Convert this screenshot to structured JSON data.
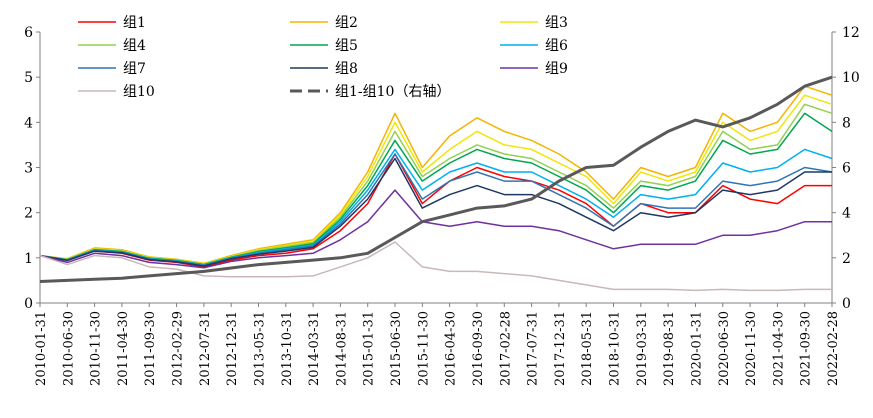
{
  "chart_data": {
    "type": "line",
    "x": [
      "2010-01-31",
      "2010-06-30",
      "2010-11-30",
      "2011-04-30",
      "2011-09-30",
      "2012-02-29",
      "2012-07-31",
      "2012-12-31",
      "2013-05-31",
      "2013-10-31",
      "2014-03-31",
      "2014-08-31",
      "2015-01-31",
      "2015-06-30",
      "2015-11-30",
      "2016-04-30",
      "2016-09-30",
      "2017-02-28",
      "2017-07-31",
      "2017-12-31",
      "2018-05-31",
      "2018-10-31",
      "2019-03-31",
      "2019-08-31",
      "2020-01-31",
      "2020-06-30",
      "2020-11-30",
      "2021-04-30",
      "2021-09-30",
      "2022-02-28"
    ],
    "x_ticks": [
      "2010-01-31",
      "2010-06-30",
      "2010-11-30",
      "2011-04-30",
      "2011-09-30",
      "2012-02-29",
      "2012-07-31",
      "2012-12-31",
      "2013-05-31",
      "2013-10-31",
      "2014-03-31",
      "2014-08-31",
      "2015-01-31",
      "2015-06-30",
      "2015-11-30",
      "2016-04-30",
      "2016-09-30",
      "2017-02-28",
      "2017-07-31",
      "2017-12-31",
      "2018-05-31",
      "2018-10-31",
      "2019-03-31",
      "2019-08-31",
      "2020-01-31",
      "2020-06-30",
      "2020-11-30",
      "2021-04-30",
      "2021-09-30",
      "2022-02-28"
    ],
    "y_left_ticks": [
      "0",
      "1",
      "2",
      "3",
      "4",
      "5",
      "6"
    ],
    "y_right_ticks": [
      "0",
      "2",
      "4",
      "6",
      "8",
      "10",
      "12"
    ],
    "ylim_left": [
      0,
      6
    ],
    "ylim_right": [
      0,
      12
    ],
    "legend_position": "top",
    "series": [
      {
        "name": "组1",
        "color": "#ff0000",
        "axis": "left",
        "values": [
          1.05,
          0.95,
          1.15,
          1.1,
          0.95,
          0.9,
          0.8,
          0.95,
          1.05,
          1.1,
          1.2,
          1.6,
          2.2,
          3.3,
          2.2,
          2.7,
          3.0,
          2.8,
          2.7,
          2.5,
          2.2,
          1.7,
          2.2,
          2.0,
          2.0,
          2.6,
          2.3,
          2.2,
          2.6,
          2.6
        ]
      },
      {
        "name": "组2",
        "color": "#f5b400",
        "axis": "left",
        "values": [
          1.05,
          0.98,
          1.22,
          1.18,
          1.02,
          0.97,
          0.88,
          1.05,
          1.2,
          1.3,
          1.4,
          2.0,
          2.9,
          4.2,
          3.0,
          3.7,
          4.1,
          3.8,
          3.6,
          3.3,
          2.9,
          2.3,
          3.0,
          2.8,
          3.0,
          4.2,
          3.8,
          4.0,
          4.8,
          4.6
        ]
      },
      {
        "name": "组3",
        "color": "#f0e60a",
        "axis": "left",
        "values": [
          1.05,
          0.97,
          1.2,
          1.16,
          1.01,
          0.96,
          0.87,
          1.03,
          1.18,
          1.27,
          1.37,
          1.95,
          2.8,
          4.0,
          2.9,
          3.4,
          3.8,
          3.5,
          3.4,
          3.1,
          2.8,
          2.2,
          2.9,
          2.7,
          2.9,
          4.0,
          3.6,
          3.8,
          4.6,
          4.4
        ]
      },
      {
        "name": "组4",
        "color": "#92d050",
        "axis": "left",
        "values": [
          1.05,
          0.96,
          1.19,
          1.15,
          1.0,
          0.95,
          0.86,
          1.02,
          1.16,
          1.25,
          1.34,
          1.9,
          2.7,
          3.8,
          2.8,
          3.2,
          3.5,
          3.3,
          3.2,
          2.9,
          2.6,
          2.1,
          2.7,
          2.6,
          2.8,
          3.8,
          3.4,
          3.5,
          4.4,
          4.2
        ]
      },
      {
        "name": "组5",
        "color": "#00a651",
        "axis": "left",
        "values": [
          1.05,
          0.96,
          1.18,
          1.14,
          0.99,
          0.94,
          0.85,
          1.01,
          1.14,
          1.22,
          1.31,
          1.85,
          2.6,
          3.6,
          2.7,
          3.1,
          3.4,
          3.2,
          3.1,
          2.8,
          2.5,
          2.0,
          2.6,
          2.5,
          2.7,
          3.6,
          3.3,
          3.4,
          4.2,
          3.8
        ]
      },
      {
        "name": "组6",
        "color": "#00b0f0",
        "axis": "left",
        "values": [
          1.05,
          0.95,
          1.17,
          1.13,
          0.98,
          0.93,
          0.84,
          1.0,
          1.12,
          1.2,
          1.28,
          1.8,
          2.5,
          3.4,
          2.5,
          2.9,
          3.1,
          2.9,
          2.9,
          2.6,
          2.3,
          1.9,
          2.4,
          2.3,
          2.4,
          3.1,
          2.9,
          3.0,
          3.4,
          3.2
        ]
      },
      {
        "name": "组7",
        "color": "#2e75b6",
        "axis": "left",
        "values": [
          1.05,
          0.95,
          1.16,
          1.12,
          0.97,
          0.92,
          0.83,
          0.99,
          1.1,
          1.18,
          1.26,
          1.75,
          2.4,
          3.3,
          2.3,
          2.7,
          2.9,
          2.7,
          2.7,
          2.4,
          2.1,
          1.7,
          2.2,
          2.1,
          2.1,
          2.7,
          2.6,
          2.7,
          3.0,
          2.9
        ]
      },
      {
        "name": "组8",
        "color": "#1f3864",
        "axis": "left",
        "values": [
          1.05,
          0.94,
          1.15,
          1.11,
          0.96,
          0.91,
          0.82,
          0.98,
          1.08,
          1.15,
          1.23,
          1.7,
          2.3,
          3.2,
          2.1,
          2.4,
          2.6,
          2.4,
          2.4,
          2.2,
          1.9,
          1.6,
          2.0,
          1.9,
          2.0,
          2.5,
          2.4,
          2.5,
          2.9,
          2.9
        ]
      },
      {
        "name": "组9",
        "color": "#7030a0",
        "axis": "left",
        "values": [
          1.05,
          0.9,
          1.1,
          1.05,
          0.9,
          0.85,
          0.78,
          0.92,
          1.0,
          1.05,
          1.1,
          1.4,
          1.8,
          2.5,
          1.8,
          1.7,
          1.8,
          1.7,
          1.7,
          1.6,
          1.4,
          1.2,
          1.3,
          1.3,
          1.3,
          1.5,
          1.5,
          1.6,
          1.8,
          1.8
        ]
      },
      {
        "name": "组10",
        "color": "#c9b8b8",
        "axis": "left",
        "values": [
          1.05,
          0.85,
          1.05,
          1.0,
          0.8,
          0.75,
          0.6,
          0.58,
          0.58,
          0.58,
          0.6,
          0.8,
          1.0,
          1.35,
          0.8,
          0.7,
          0.7,
          0.65,
          0.6,
          0.5,
          0.4,
          0.3,
          0.3,
          0.3,
          0.28,
          0.3,
          0.28,
          0.28,
          0.3,
          0.3
        ]
      },
      {
        "name": "组1-组10（右轴）",
        "color": "#595959",
        "axis": "right",
        "dashed": true,
        "values": [
          0.95,
          1.0,
          1.05,
          1.1,
          1.2,
          1.3,
          1.4,
          1.55,
          1.7,
          1.8,
          1.9,
          2.0,
          2.2,
          2.9,
          3.6,
          3.9,
          4.2,
          4.3,
          4.6,
          5.4,
          6.0,
          6.1,
          6.9,
          7.6,
          8.1,
          7.8,
          8.2,
          8.8,
          9.6,
          10.0
        ]
      }
    ]
  }
}
